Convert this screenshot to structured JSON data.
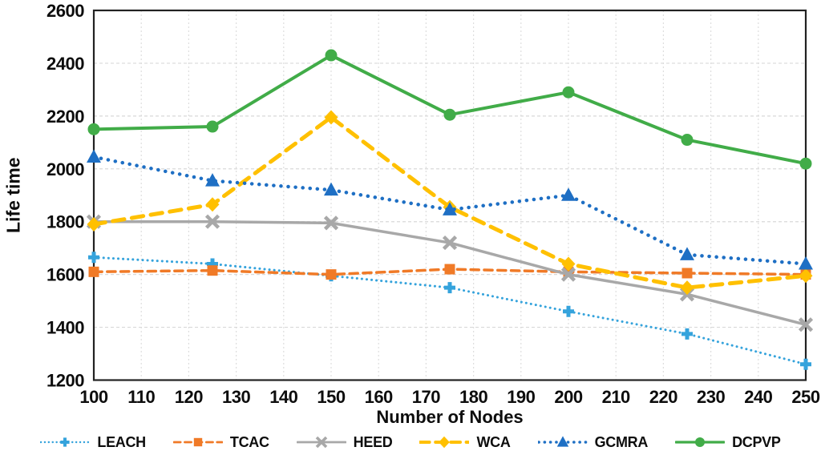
{
  "chart_data": {
    "type": "line",
    "title": "",
    "xlabel": "Number of Nodes",
    "ylabel": "Life time",
    "x": [
      100,
      125,
      150,
      175,
      200,
      225,
      250
    ],
    "xlim": [
      100,
      250
    ],
    "x_ticks": [
      100,
      110,
      120,
      130,
      140,
      150,
      160,
      170,
      180,
      190,
      200,
      210,
      220,
      230,
      240,
      250
    ],
    "ylim": [
      1200,
      2600
    ],
    "y_ticks": [
      1200,
      1400,
      1600,
      1800,
      2000,
      2200,
      2400,
      2600
    ],
    "grid": true,
    "legend_position": "bottom",
    "series": [
      {
        "name": "LEACH",
        "color": "#35A3DC",
        "line_style": "dotted",
        "marker": "plus",
        "values": [
          1665,
          1640,
          1595,
          1550,
          1460,
          1375,
          1260
        ]
      },
      {
        "name": "TCAC",
        "color": "#F07A27",
        "line_style": "dashed",
        "marker": "square",
        "values": [
          1610,
          1615,
          1600,
          1620,
          1610,
          1605,
          1600
        ]
      },
      {
        "name": "HEED",
        "color": "#A8A8A8",
        "line_style": "solid",
        "marker": "x",
        "values": [
          1800,
          1800,
          1795,
          1720,
          1600,
          1525,
          1410
        ]
      },
      {
        "name": "WCA",
        "color": "#FFC000",
        "line_style": "dashed",
        "marker": "diamond",
        "values": [
          1790,
          1865,
          2195,
          1855,
          1640,
          1550,
          1595
        ]
      },
      {
        "name": "GCMRA",
        "color": "#1E6FC4",
        "line_style": "dotted",
        "marker": "triangle",
        "values": [
          2045,
          1955,
          1920,
          1845,
          1900,
          1675,
          1640
        ]
      },
      {
        "name": "DCPVP",
        "color": "#41AC48",
        "line_style": "solid",
        "marker": "circle",
        "values": [
          2150,
          2160,
          2430,
          2205,
          2290,
          2110,
          2020
        ]
      }
    ],
    "styles": {
      "grid_color_v": "#dedede",
      "grid_color_h": "#d9d9d9",
      "border_color": "#222222",
      "tick_color": "#0d0d0d"
    }
  }
}
